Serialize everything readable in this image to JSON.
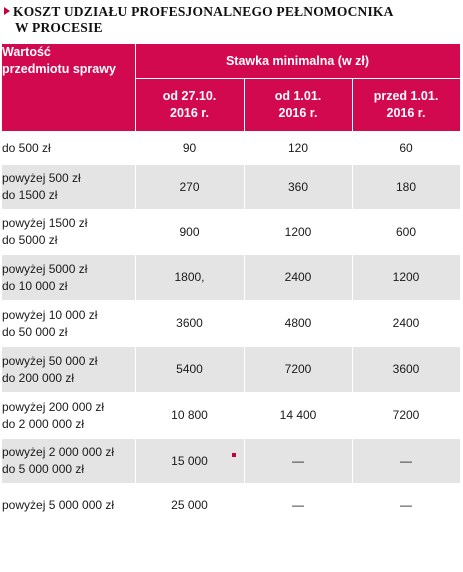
{
  "title": {
    "line1": "KOSZT UDZIAŁU PROFESJONALNEGO PEŁNOMOCNIKA",
    "line2": "W PROCESIE",
    "icon": "arrow-right-icon"
  },
  "table": {
    "header": {
      "first_col": [
        "Wartość",
        "przedmiotu sprawy"
      ],
      "group": "Stawka minimalna (w zł)",
      "sub": [
        [
          "od 27.10.",
          "2016 r."
        ],
        [
          "od 1.01.",
          "2016 r."
        ],
        [
          "przed 1.01.",
          "2016 r."
        ]
      ]
    },
    "rows": [
      {
        "label": [
          "do 500 zł"
        ],
        "values": [
          "90",
          "120",
          "60"
        ]
      },
      {
        "label": [
          "powyżej 500 zł",
          "do 1500 zł"
        ],
        "values": [
          "270",
          "360",
          "180"
        ]
      },
      {
        "label": [
          "powyżej 1500 zł",
          "do 5000 zł"
        ],
        "values": [
          "900",
          "1200",
          "600"
        ]
      },
      {
        "label": [
          "powyżej 5000 zł",
          "do 10 000 zł"
        ],
        "values": [
          "1800,",
          "2400",
          "1200"
        ]
      },
      {
        "label": [
          "powyżej 10 000 zł",
          "do 50 000 zł"
        ],
        "values": [
          "3600",
          "4800",
          "2400"
        ]
      },
      {
        "label": [
          "powyżej 50 000 zł",
          "do 200 000 zł"
        ],
        "values": [
          "5400",
          "7200",
          "3600"
        ]
      },
      {
        "label": [
          "powyżej 200 000 zł",
          "do 2 000 000 zł"
        ],
        "values": [
          "10 800",
          "14 400",
          "7200"
        ]
      },
      {
        "label": [
          "powyżej 2 000 000 zł",
          "do 5 000 000 zł"
        ],
        "values": [
          "15 000",
          "—",
          "—"
        ]
      },
      {
        "label": [
          "powyżej 5 000 000 zł"
        ],
        "values": [
          "25 000",
          "—",
          "—"
        ]
      }
    ]
  },
  "colors": {
    "header_bg": "#d3094f",
    "accent": "#c4003a",
    "stripe": "#e4e4e4"
  }
}
